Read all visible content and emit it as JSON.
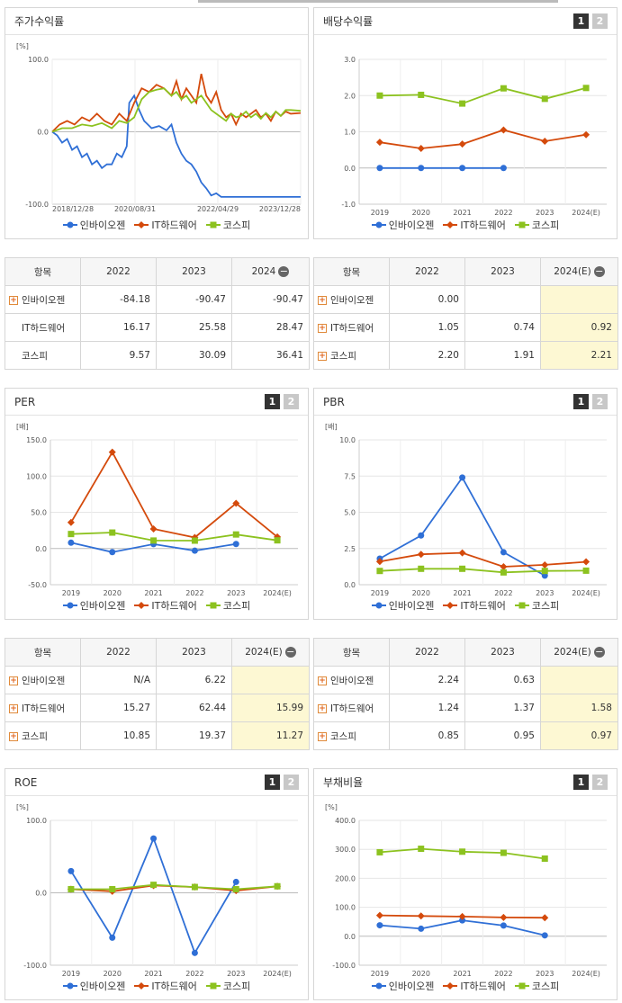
{
  "legend_names": [
    "인바이오젠",
    "IT하드웨어",
    "코스피"
  ],
  "colors": [
    "#2f6fd6",
    "#d44a0c",
    "#8cc21f"
  ],
  "charts": [
    {
      "id": "c1",
      "title": "주가수익률",
      "unit": "[%]",
      "type": "line",
      "ylim": [
        -100,
        100
      ],
      "yticks": [
        "100.0",
        "0.0",
        "-100.0"
      ],
      "xticks": [
        "2018/12/28",
        "2020/08/31",
        "2022/04/29",
        "2023/12/28"
      ],
      "buttons": [],
      "series_points": [
        [
          [
            0,
            0
          ],
          [
            2,
            -5
          ],
          [
            4,
            -15
          ],
          [
            6,
            -10
          ],
          [
            8,
            -25
          ],
          [
            10,
            -20
          ],
          [
            12,
            -35
          ],
          [
            14,
            -30
          ],
          [
            16,
            -45
          ],
          [
            18,
            -40
          ],
          [
            20,
            -50
          ],
          [
            22,
            -45
          ],
          [
            24,
            -45
          ],
          [
            26,
            -30
          ],
          [
            28,
            -35
          ],
          [
            30,
            -20
          ],
          [
            31,
            40
          ],
          [
            33,
            50
          ],
          [
            35,
            30
          ],
          [
            37,
            15
          ],
          [
            40,
            5
          ],
          [
            43,
            8
          ],
          [
            46,
            2
          ],
          [
            48,
            10
          ],
          [
            50,
            -15
          ],
          [
            52,
            -30
          ],
          [
            54,
            -40
          ],
          [
            56,
            -45
          ],
          [
            58,
            -55
          ],
          [
            60,
            -70
          ],
          [
            62,
            -78
          ],
          [
            64,
            -88
          ],
          [
            66,
            -85
          ],
          [
            68,
            -90
          ],
          [
            100,
            -90
          ]
        ],
        [
          [
            0,
            0
          ],
          [
            3,
            10
          ],
          [
            6,
            15
          ],
          [
            9,
            10
          ],
          [
            12,
            20
          ],
          [
            15,
            15
          ],
          [
            18,
            25
          ],
          [
            21,
            15
          ],
          [
            24,
            10
          ],
          [
            27,
            25
          ],
          [
            30,
            15
          ],
          [
            33,
            40
          ],
          [
            36,
            60
          ],
          [
            39,
            55
          ],
          [
            42,
            65
          ],
          [
            45,
            60
          ],
          [
            48,
            50
          ],
          [
            50,
            70
          ],
          [
            52,
            45
          ],
          [
            54,
            60
          ],
          [
            56,
            50
          ],
          [
            58,
            40
          ],
          [
            60,
            80
          ],
          [
            62,
            50
          ],
          [
            64,
            40
          ],
          [
            66,
            55
          ],
          [
            68,
            30
          ],
          [
            70,
            20
          ],
          [
            72,
            25
          ],
          [
            74,
            10
          ],
          [
            76,
            25
          ],
          [
            78,
            20
          ],
          [
            80,
            25
          ],
          [
            82,
            30
          ],
          [
            84,
            20
          ],
          [
            86,
            25
          ],
          [
            88,
            15
          ],
          [
            90,
            28
          ],
          [
            92,
            22
          ],
          [
            94,
            28
          ],
          [
            96,
            25
          ],
          [
            100,
            26
          ]
        ],
        [
          [
            0,
            0
          ],
          [
            4,
            5
          ],
          [
            8,
            5
          ],
          [
            12,
            10
          ],
          [
            16,
            8
          ],
          [
            20,
            12
          ],
          [
            24,
            5
          ],
          [
            27,
            15
          ],
          [
            30,
            12
          ],
          [
            33,
            20
          ],
          [
            36,
            45
          ],
          [
            39,
            55
          ],
          [
            42,
            58
          ],
          [
            45,
            60
          ],
          [
            48,
            50
          ],
          [
            50,
            55
          ],
          [
            52,
            45
          ],
          [
            54,
            50
          ],
          [
            56,
            40
          ],
          [
            58,
            45
          ],
          [
            60,
            50
          ],
          [
            62,
            40
          ],
          [
            64,
            30
          ],
          [
            66,
            25
          ],
          [
            68,
            20
          ],
          [
            70,
            15
          ],
          [
            72,
            25
          ],
          [
            74,
            20
          ],
          [
            76,
            22
          ],
          [
            78,
            28
          ],
          [
            80,
            20
          ],
          [
            82,
            25
          ],
          [
            84,
            18
          ],
          [
            86,
            26
          ],
          [
            88,
            20
          ],
          [
            90,
            28
          ],
          [
            92,
            22
          ],
          [
            94,
            30
          ],
          [
            96,
            30
          ],
          [
            100,
            29
          ]
        ]
      ]
    },
    {
      "id": "c2",
      "title": "배당수익률",
      "unit": "",
      "type": "points",
      "ylim": [
        -1,
        3
      ],
      "yticks": [
        "3.0",
        "2.0",
        "1.0",
        "0.0",
        "-1.0"
      ],
      "xticks": [
        "2019",
        "2020",
        "2021",
        "2022",
        "2023",
        "2024(E)"
      ],
      "buttons": [
        "1",
        "2"
      ],
      "series": [
        [
          0.0,
          0.0,
          0.0,
          0.0,
          null,
          null
        ],
        [
          0.71,
          0.54,
          0.66,
          1.05,
          0.74,
          0.92
        ],
        [
          2.0,
          2.02,
          1.78,
          2.2,
          1.91,
          2.21
        ]
      ]
    },
    {
      "id": "c3",
      "title": "PER",
      "unit": "[배]",
      "type": "points",
      "ylim": [
        -50,
        150
      ],
      "yticks": [
        "150.0",
        "100.0",
        "50.0",
        "0.0",
        "-50.0"
      ],
      "xticks": [
        "2019",
        "2020",
        "2021",
        "2022",
        "2023",
        "2024(E)"
      ],
      "buttons": [
        "1",
        "2"
      ],
      "series": [
        [
          8,
          -5,
          6,
          -3,
          6.22,
          null
        ],
        [
          36,
          133,
          27,
          15.27,
          62.44,
          15.99
        ],
        [
          20,
          22,
          11,
          10.85,
          19.37,
          11.27
        ]
      ]
    },
    {
      "id": "c4",
      "title": "PBR",
      "unit": "[배]",
      "type": "points",
      "ylim": [
        0,
        10
      ],
      "yticks": [
        "10.0",
        "7.5",
        "5.0",
        "2.5",
        "0.0"
      ],
      "xticks": [
        "2019",
        "2020",
        "2021",
        "2022",
        "2023",
        "2024(E)"
      ],
      "buttons": [
        "1",
        "2"
      ],
      "series": [
        [
          1.8,
          3.4,
          7.4,
          2.24,
          0.63,
          null
        ],
        [
          1.6,
          2.1,
          2.2,
          1.24,
          1.37,
          1.58
        ],
        [
          0.95,
          1.1,
          1.1,
          0.85,
          0.95,
          0.97
        ]
      ]
    },
    {
      "id": "c5",
      "title": "ROE",
      "unit": "[%]",
      "type": "points",
      "ylim": [
        -100,
        100
      ],
      "yticks": [
        "100.0",
        "0.0",
        "-100.0"
      ],
      "xticks": [
        "2019",
        "2020",
        "2021",
        "2022",
        "2023",
        "2024(E)"
      ],
      "buttons": [
        "1",
        "2"
      ],
      "series": [
        [
          30,
          -62,
          75,
          -83,
          15,
          null
        ],
        [
          5,
          2,
          10,
          8,
          3,
          9
        ],
        [
          5,
          5,
          11,
          8,
          5,
          9
        ]
      ]
    },
    {
      "id": "c6",
      "title": "부채비율",
      "unit": "[%]",
      "type": "points",
      "ylim": [
        -100,
        400
      ],
      "yticks": [
        "400.0",
        "300.0",
        "200.0",
        "100.0",
        "0.0",
        "-100.0"
      ],
      "xticks": [
        "2019",
        "2020",
        "2021",
        "2022",
        "2023",
        "2024(E)"
      ],
      "buttons": [
        "1",
        "2"
      ],
      "series": [
        [
          38,
          26,
          55,
          37,
          3,
          null
        ],
        [
          72,
          70,
          68,
          65,
          64,
          null
        ],
        [
          290,
          302,
          292,
          288,
          268,
          null
        ]
      ]
    }
  ],
  "tables": [
    {
      "id": "t1",
      "headers": [
        "항목",
        "2022",
        "2023",
        "2024"
      ],
      "minus": true,
      "hlcol": -1,
      "rows": [
        [
          "인바이오젠",
          "-84.18",
          "-90.47",
          "-90.47"
        ],
        [
          "IT하드웨어",
          "16.17",
          "25.58",
          "28.47"
        ],
        [
          "코스피",
          "9.57",
          "30.09",
          "36.41"
        ]
      ],
      "plus": [
        true,
        false,
        false
      ]
    },
    {
      "id": "t2",
      "headers": [
        "항목",
        "2022",
        "2023",
        "2024(E)"
      ],
      "minus": true,
      "hlcol": 3,
      "rows": [
        [
          "인바이오젠",
          "0.00",
          "",
          ""
        ],
        [
          "IT하드웨어",
          "1.05",
          "0.74",
          "0.92"
        ],
        [
          "코스피",
          "2.20",
          "1.91",
          "2.21"
        ]
      ],
      "plus": [
        true,
        true,
        true
      ]
    },
    {
      "id": "t3",
      "headers": [
        "항목",
        "2022",
        "2023",
        "2024(E)"
      ],
      "minus": true,
      "hlcol": 3,
      "rows": [
        [
          "인바이오젠",
          "N/A",
          "6.22",
          ""
        ],
        [
          "IT하드웨어",
          "15.27",
          "62.44",
          "15.99"
        ],
        [
          "코스피",
          "10.85",
          "19.37",
          "11.27"
        ]
      ],
      "plus": [
        true,
        true,
        true
      ]
    },
    {
      "id": "t4",
      "headers": [
        "항목",
        "2022",
        "2023",
        "2024(E)"
      ],
      "minus": true,
      "hlcol": 3,
      "rows": [
        [
          "인바이오젠",
          "2.24",
          "0.63",
          ""
        ],
        [
          "IT하드웨어",
          "1.24",
          "1.37",
          "1.58"
        ],
        [
          "코스피",
          "0.85",
          "0.95",
          "0.97"
        ]
      ],
      "plus": [
        true,
        true,
        true
      ]
    }
  ]
}
